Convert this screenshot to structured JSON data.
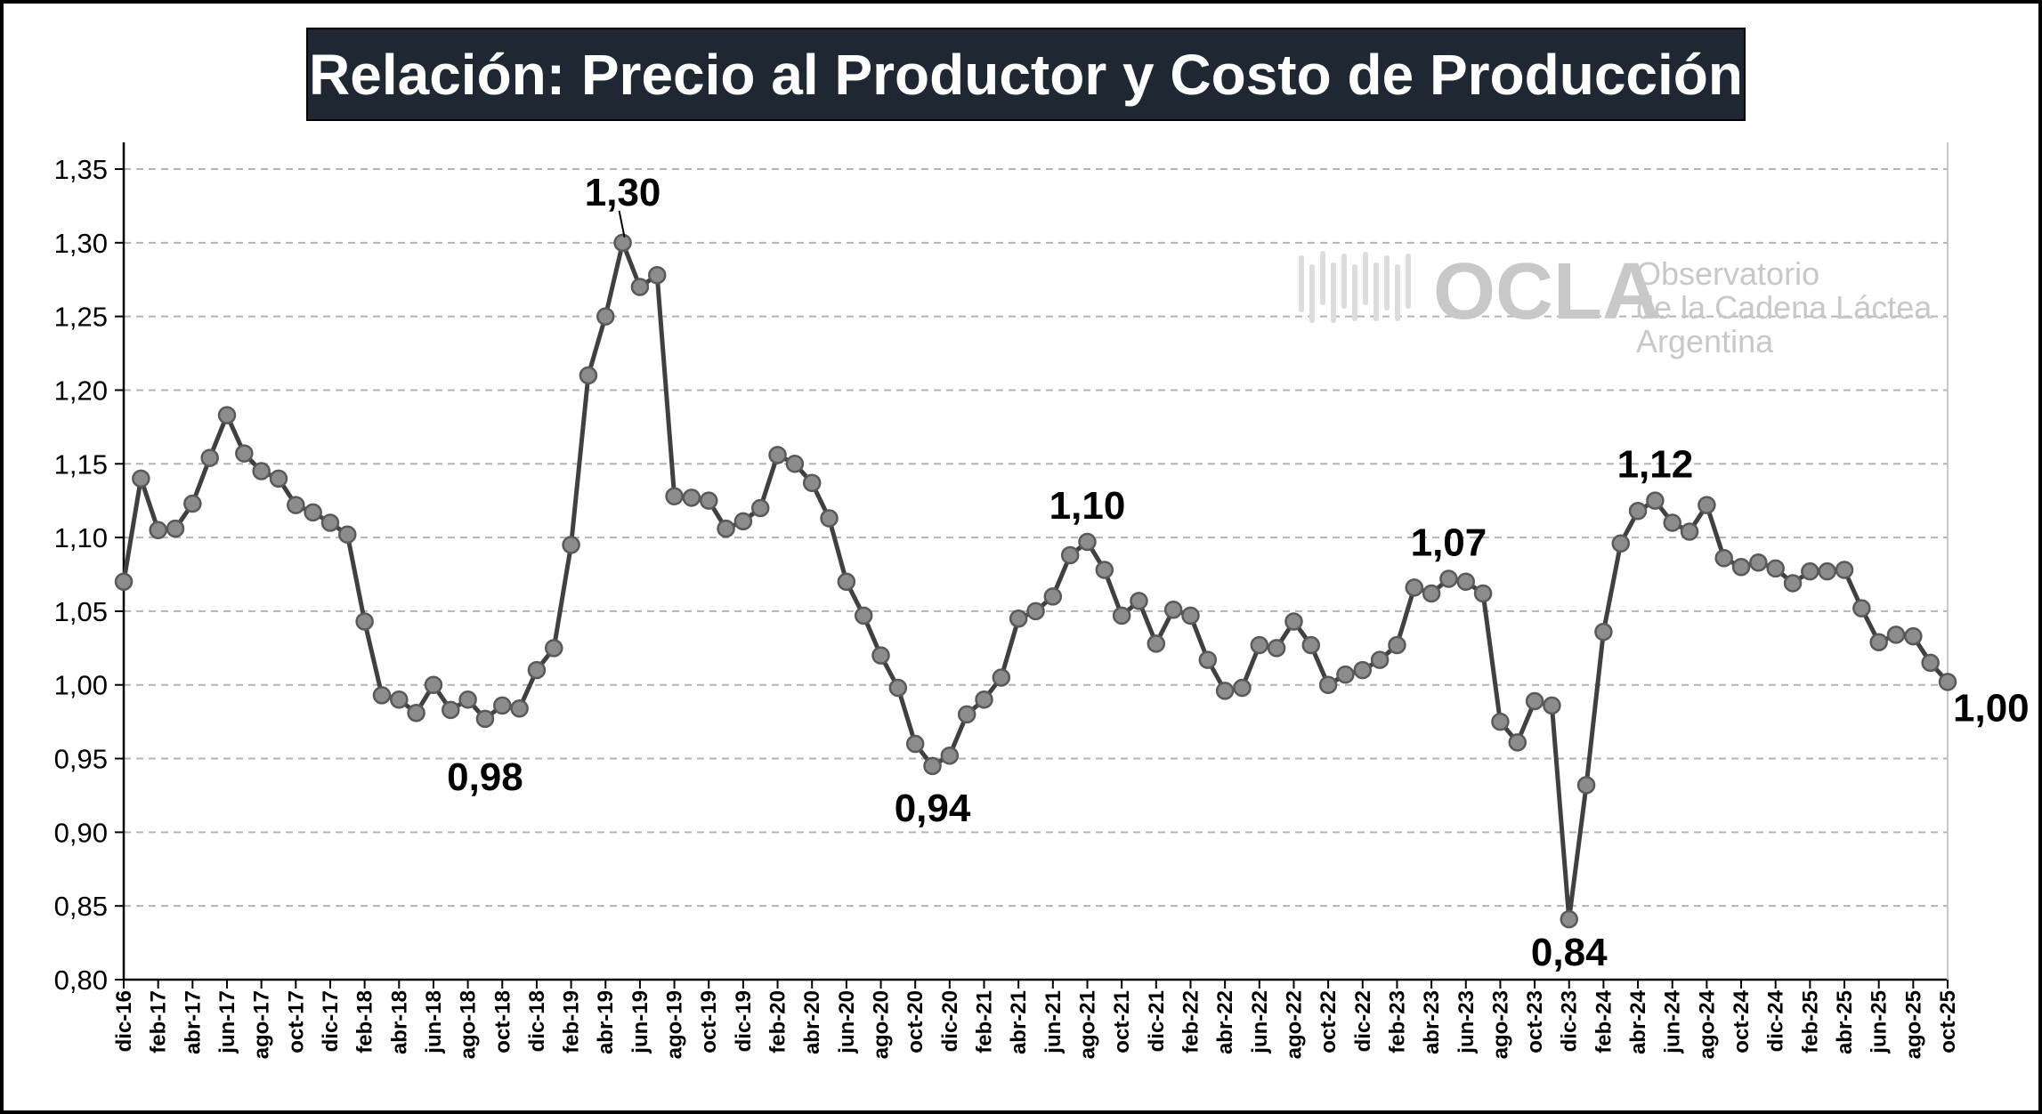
{
  "chart_data": {
    "type": "line",
    "title": "Relación: Precio al Productor y Costo de Producción",
    "xlabel": "",
    "ylabel": "",
    "ylim": [
      0.8,
      1.35
    ],
    "yticks": [
      "0,80",
      "0,85",
      "0,90",
      "0,95",
      "1,00",
      "1,05",
      "1,10",
      "1,15",
      "1,20",
      "1,25",
      "1,30",
      "1,35"
    ],
    "grid": "horizontal dashed",
    "legend": "none",
    "line_color": "#404040",
    "marker_color": "#8c8c8c",
    "x_labels": [
      "dic-16",
      "feb-17",
      "abr-17",
      "jun-17",
      "ago-17",
      "oct-17",
      "dic-17",
      "feb-18",
      "abr-18",
      "jun-18",
      "ago-18",
      "oct-18",
      "dic-18",
      "feb-19",
      "abr-19",
      "jun-19",
      "ago-19",
      "oct-19",
      "dic-19",
      "feb-20",
      "abr-20",
      "jun-20",
      "ago-20",
      "oct-20",
      "dic-20",
      "feb-21",
      "abr-21",
      "jun-21",
      "ago-21",
      "oct-21",
      "dic-21",
      "feb-22",
      "abr-22",
      "jun-22",
      "ago-22",
      "oct-22",
      "dic-22",
      "feb-23",
      "abr-23",
      "jun-23",
      "ago-23",
      "oct-23",
      "dic-23",
      "feb-24",
      "abr-24",
      "jun-24",
      "ago-24",
      "oct-24",
      "dic-24",
      "feb-25",
      "abr-25",
      "jun-25",
      "ago-25",
      "oct-25"
    ],
    "values": [
      1.07,
      1.14,
      1.105,
      1.106,
      1.123,
      1.154,
      1.183,
      1.157,
      1.145,
      1.14,
      1.122,
      1.117,
      1.11,
      1.102,
      1.043,
      0.993,
      0.99,
      0.981,
      1.0,
      0.983,
      0.99,
      0.977,
      0.986,
      0.984,
      1.01,
      1.025,
      1.095,
      1.21,
      1.25,
      1.3,
      1.27,
      1.278,
      1.128,
      1.127,
      1.125,
      1.106,
      1.111,
      1.12,
      1.156,
      1.15,
      1.137,
      1.113,
      1.07,
      1.047,
      1.02,
      0.998,
      0.96,
      0.945,
      0.952,
      0.98,
      0.99,
      1.005,
      1.045,
      1.05,
      1.06,
      1.088,
      1.097,
      1.078,
      1.047,
      1.057,
      1.028,
      1.051,
      1.047,
      1.017,
      0.996,
      0.998,
      1.027,
      1.025,
      1.043,
      1.027,
      1.0,
      1.007,
      1.01,
      1.017,
      1.027,
      1.066,
      1.062,
      1.072,
      1.07,
      1.062,
      0.975,
      0.961,
      0.989,
      0.986,
      0.841,
      0.932,
      1.036,
      1.096,
      1.118,
      1.125,
      1.11,
      1.104,
      1.122,
      1.086,
      1.08,
      1.083,
      1.079,
      1.069,
      1.077,
      1.077,
      1.078,
      1.052,
      1.029,
      1.034,
      1.033,
      1.015,
      1.002
    ],
    "annotations": [
      {
        "text": "1,30",
        "index": 29
      },
      {
        "text": "0,98",
        "index": 21
      },
      {
        "text": "0,94",
        "index": 47
      },
      {
        "text": "1,10",
        "index": 56
      },
      {
        "text": "1,07",
        "index": 77
      },
      {
        "text": "0,84",
        "index": 84
      },
      {
        "text": "1,12",
        "index": 89
      },
      {
        "text": "1,00",
        "index": 106
      }
    ]
  },
  "watermark": {
    "logo": "OCLA",
    "line1": "Observatorio",
    "line2": "de la Cadena Láctea",
    "line3": "Argentina"
  }
}
